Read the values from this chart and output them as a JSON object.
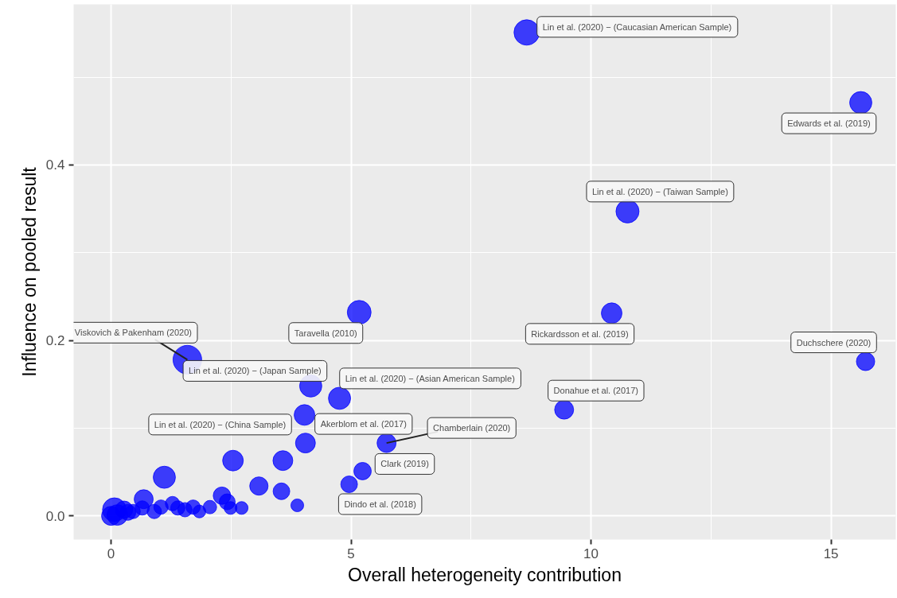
{
  "chart_data": {
    "type": "bubble",
    "xlabel": "Overall heterogeneity contribution",
    "ylabel": "Influence on pooled result",
    "x": [
      8.66,
      15.62,
      10.76,
      10.43,
      15.72,
      9.44,
      5.17,
      1.59,
      4.16,
      4.76,
      4.03,
      4.05,
      5.74,
      5.24,
      4.96,
      1.11,
      2.54,
      3.58,
      3.08,
      3.55,
      3.88,
      2.31,
      2.42,
      2.49,
      2.72,
      2.06,
      1.84,
      1.71,
      1.54,
      1.39,
      1.28,
      1.04,
      0.9,
      0.68,
      0.65,
      0.46,
      0.27,
      0.07,
      0.0,
      0.13,
      0.35
    ],
    "values": [
      0.551,
      0.471,
      0.347,
      0.231,
      0.176,
      0.121,
      0.232,
      0.178,
      0.148,
      0.134,
      0.115,
      0.083,
      0.083,
      0.051,
      0.036,
      0.044,
      0.063,
      0.063,
      0.034,
      0.028,
      0.012,
      0.023,
      0.016,
      0.009,
      0.009,
      0.01,
      0.005,
      0.01,
      0.007,
      0.009,
      0.014,
      0.01,
      0.005,
      0.019,
      0.009,
      0.005,
      0.007,
      0.007,
      0.0,
      0.001,
      0.004
    ],
    "sizes": [
      0.79,
      0.6,
      0.65,
      0.52,
      0.41,
      0.44,
      0.69,
      1,
      0.6,
      0.6,
      0.52,
      0.48,
      0.44,
      0.37,
      0.34,
      0.6,
      0.52,
      0.48,
      0.41,
      0.34,
      0.2,
      0.37,
      0.31,
      0.2,
      0.2,
      0.22,
      0.2,
      0.25,
      0.25,
      0.25,
      0.25,
      0.25,
      0.25,
      0.44,
      0.25,
      0.25,
      0.37,
      0.69,
      0.44,
      0.52,
      0.31
    ],
    "color": "#0000ff",
    "xlim": [
      -0.78,
      16.35
    ],
    "ylim": [
      -0.027,
      0.583
    ],
    "xticks": [
      0,
      5,
      10,
      15
    ],
    "yticks": [
      {
        "value": 0,
        "label": "0.0"
      },
      {
        "value": 0.2,
        "label": "0.2"
      },
      {
        "value": 0.4,
        "label": "0.4"
      }
    ],
    "grid": true,
    "annotations": [
      {
        "text": "Lin et al. (2020) − (Caucasian American Sample)",
        "x": 8.66,
        "y": 0.551
      },
      {
        "text": "Edwards et al. (2019)",
        "x": 15.62,
        "y": 0.471
      },
      {
        "text": "Lin et al. (2020) − (Taiwan Sample)",
        "x": 10.76,
        "y": 0.347
      },
      {
        "text": "Rickardsson et al. (2019)",
        "x": 10.43,
        "y": 0.231
      },
      {
        "text": "Duchschere (2020)",
        "x": 15.72,
        "y": 0.176
      },
      {
        "text": "Donahue et al. (2017)",
        "x": 9.44,
        "y": 0.121
      },
      {
        "text": "Taravella (2010)",
        "x": 5.17,
        "y": 0.232
      },
      {
        "text": "Viskovich & Pakenham (2020)",
        "x": 1.59,
        "y": 0.178
      },
      {
        "text": "Lin et al. (2020) − (Japan Sample)",
        "x": 4.16,
        "y": 0.148
      },
      {
        "text": "Lin et al. (2020) − (Asian American Sample)",
        "x": 4.76,
        "y": 0.134
      },
      {
        "text": "Lin et al. (2020) − (China Sample)",
        "x": 4.03,
        "y": 0.115
      },
      {
        "text": "Akerblom et al. (2017)",
        "x": 4.05,
        "y": 0.083
      },
      {
        "text": "Chamberlain (2020)",
        "x": 5.74,
        "y": 0.083
      },
      {
        "text": "Clark (2019)",
        "x": 5.24,
        "y": 0.051
      },
      {
        "text": "Dindo et al. (2018)",
        "x": 4.96,
        "y": 0.036
      }
    ]
  }
}
